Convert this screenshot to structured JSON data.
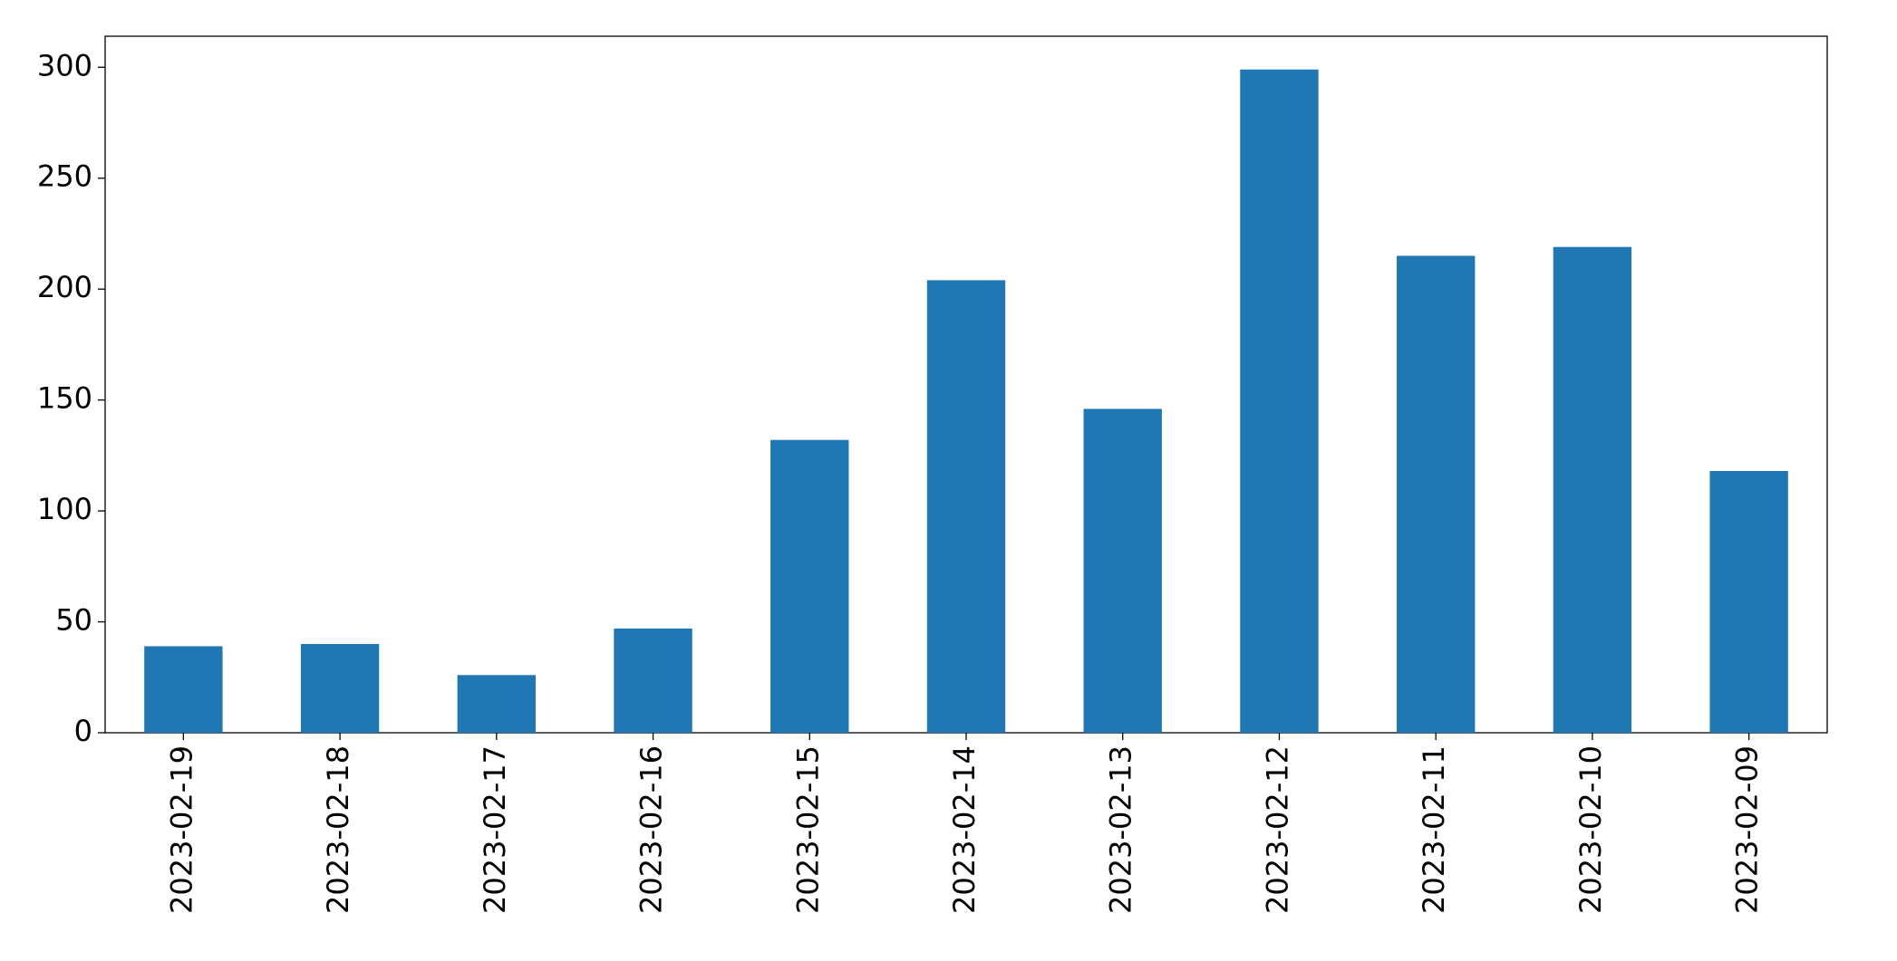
{
  "chart_data": {
    "type": "bar",
    "categories": [
      "2023-02-19",
      "2023-02-18",
      "2023-02-17",
      "2023-02-16",
      "2023-02-15",
      "2023-02-14",
      "2023-02-13",
      "2023-02-12",
      "2023-02-11",
      "2023-02-10",
      "2023-02-09"
    ],
    "values": [
      39,
      40,
      26,
      47,
      132,
      204,
      146,
      299,
      215,
      219,
      118
    ],
    "color": "#1f77b4",
    "ylim": [
      0,
      314
    ],
    "yticks": [
      0,
      50,
      100,
      150,
      200,
      250,
      300
    ],
    "grid": false
  }
}
